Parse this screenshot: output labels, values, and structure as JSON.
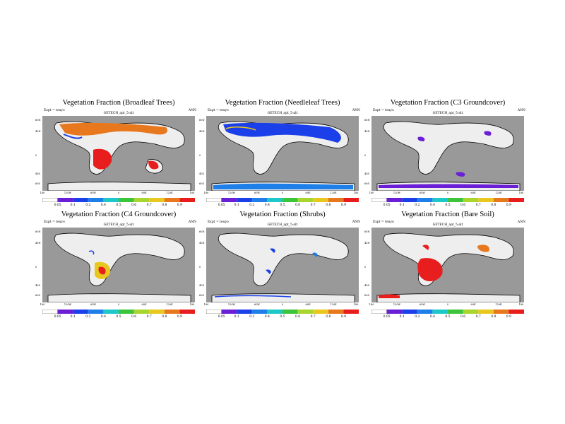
{
  "common": {
    "expt_label": "Expt = teuyo",
    "season": "ANN",
    "subtitle": "GETECH_apt_5-alt",
    "lat_ticks": [
      "60N",
      "40N",
      "0",
      "40S",
      "60S"
    ],
    "lon_ticks": [
      "180",
      "120W",
      "60W",
      "0",
      "60E",
      "120E",
      "180"
    ],
    "colorbar_labels": [
      "0.05",
      "0.1",
      "0.2",
      "0.4",
      "0.5",
      "0.6",
      "0.7",
      "0.8",
      "0.9"
    ],
    "colorbar_colors": [
      "#ffffff",
      "#6a1fd6",
      "#1b3fe8",
      "#1e7fe8",
      "#1ec8c8",
      "#3cc43c",
      "#a8d62e",
      "#e8c81e",
      "#e8781e",
      "#e81e1e"
    ],
    "ocean_color": "#999999",
    "land_color": "#eeeeee"
  },
  "panels": [
    {
      "title": "Vegetation Fraction (Broadleaf Trees)"
    },
    {
      "title": "Vegetation Fraction (Needleleaf Trees)"
    },
    {
      "title": "Vegetation Fraction (C3 Groundcover)"
    },
    {
      "title": "Vegetation Fraction (C4 Groundcover)"
    },
    {
      "title": "Vegetation Fraction (Shrubs)"
    },
    {
      "title": "Vegetation Fraction (Bare Soil)"
    }
  ]
}
